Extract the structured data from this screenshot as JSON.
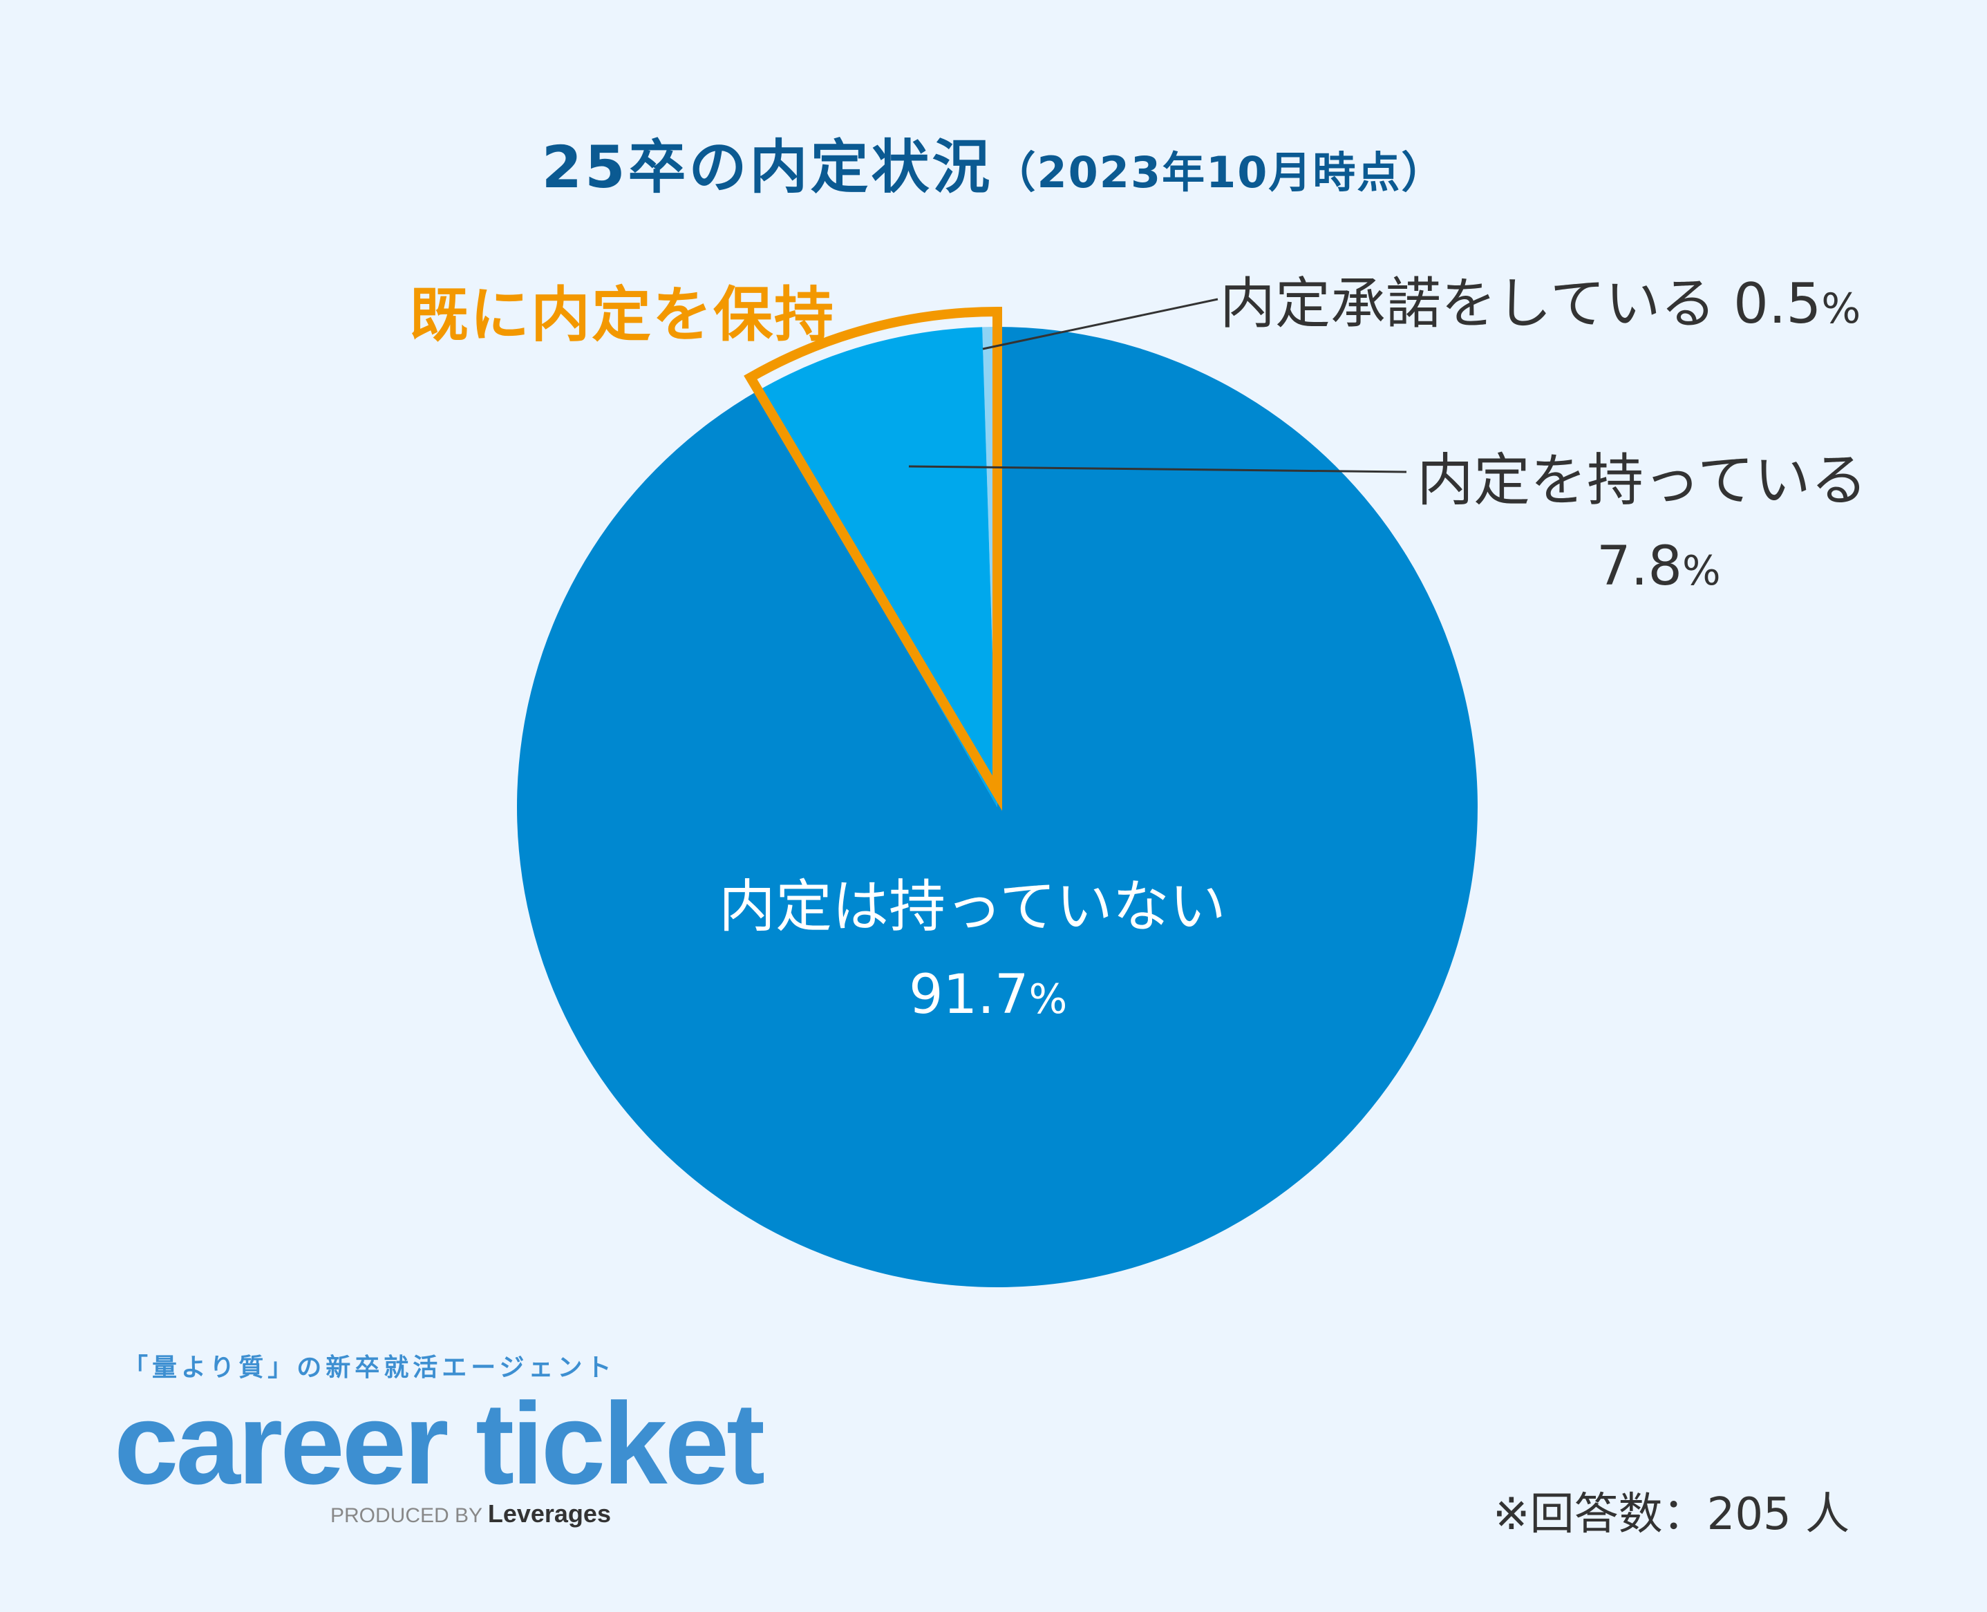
{
  "title": {
    "main": "25卒の内定状況",
    "sub": "（2023年10月時点）"
  },
  "highlight_label": "既に内定を保持",
  "labels": {
    "accepted_text": "内定承諾をしている",
    "accepted_value": "0.5",
    "have_text": "内定を持っている",
    "have_value": "7.8",
    "none_text": "内定は持っていない",
    "none_value": "91.7",
    "percent_sign": "%"
  },
  "chart_data": {
    "type": "pie",
    "title": "25卒の内定状況（2023年10月時点）",
    "start_angle_deg": 0,
    "direction": "counterclockwise",
    "slices": [
      {
        "label": "内定承諾をしている",
        "value": 0.5,
        "color": "#8fd3f4"
      },
      {
        "label": "内定を持っている",
        "value": 7.8,
        "color": "#00a8ec"
      },
      {
        "label": "内定は持っていない",
        "value": 91.7,
        "color": "#0088d0"
      }
    ],
    "highlight": {
      "label": "既に内定を保持",
      "slices": [
        "内定承諾をしている",
        "内定を持っている"
      ],
      "color": "#f39800"
    }
  },
  "brand": {
    "tagline": "「量より質」の新卒就活エージェント",
    "name": "career ticket",
    "produced_by": "PRODUCED BY",
    "company": "Leverages"
  },
  "footnote": "※回答数：205 人"
}
